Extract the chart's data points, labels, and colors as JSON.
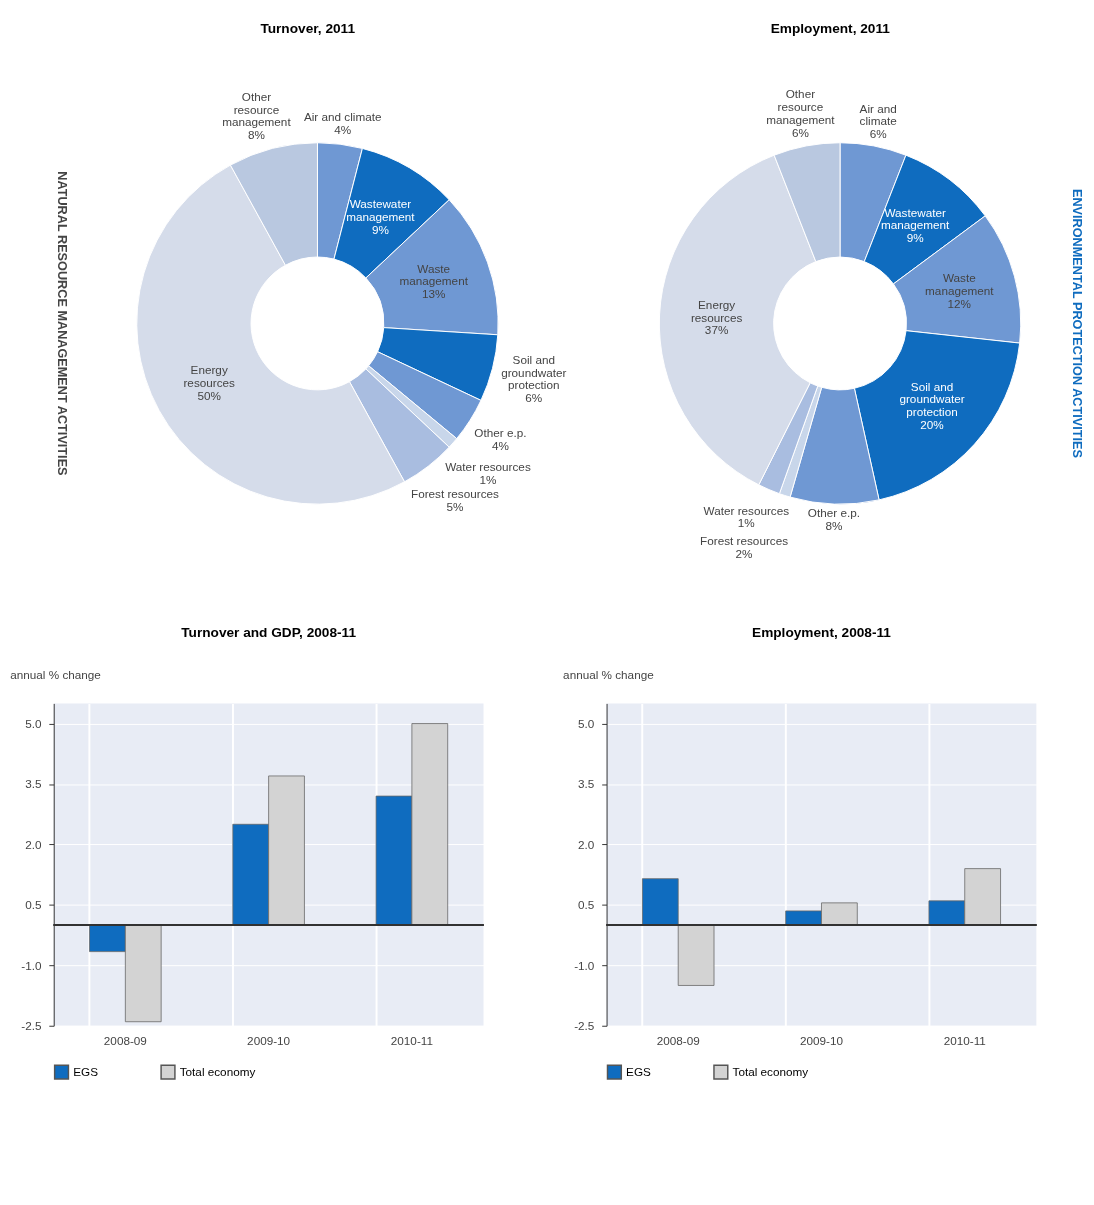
{
  "chart_data": [
    {
      "type": "donut",
      "title": "Turnover, 2011",
      "categories": [
        "Air and climate",
        "Wastewater management",
        "Waste management",
        "Soil and groundwater protection",
        "Other e.p.",
        "Water resources",
        "Forest resources",
        "Energy resources",
        "Other resource management"
      ],
      "values": [
        4,
        9,
        13,
        6,
        4,
        1,
        5,
        50,
        8
      ],
      "value_labels": [
        "4%",
        "9%",
        "13%",
        "6%",
        "4%",
        "1%",
        "5%",
        "50%",
        "8%"
      ],
      "colors": [
        "#6f98d3",
        "#0f6cbf",
        "#6f98d3",
        "#0f6cbf",
        "#6f98d3",
        "#c8d6ea",
        "#a9bde0",
        "#d5dcea",
        "#b9c8e0"
      ],
      "annotations": [
        "NATURAL RESOURCE MANAGEMENT ACTIVITIES"
      ]
    },
    {
      "type": "donut",
      "title": "Employment, 2011",
      "categories": [
        "Air and climate",
        "Wastewater management",
        "Waste management",
        "Soil and groundwater protection",
        "Other e.p.",
        "Water resources",
        "Forest resources",
        "Energy resources",
        "Other resource management"
      ],
      "values": [
        6,
        9,
        12,
        20,
        8,
        1,
        2,
        37,
        6
      ],
      "value_labels": [
        "6%",
        "9%",
        "12%",
        "20%",
        "8%",
        "1%",
        "2%",
        "37%",
        "6%"
      ],
      "colors": [
        "#6f98d3",
        "#0f6cbf",
        "#6f98d3",
        "#0f6cbf",
        "#6f98d3",
        "#c8d6ea",
        "#a9bde0",
        "#d5dcea",
        "#b9c8e0"
      ],
      "annotations": [
        "ENVIRONMENTAL PROTECTION ACTIVITIES"
      ]
    },
    {
      "type": "bar",
      "title": "Turnover and GDP, 2008-11",
      "ylabel": "annual % change",
      "categories": [
        "2008-09",
        "2009-10",
        "2010-11"
      ],
      "series": [
        {
          "name": "EGS",
          "color": "#0f6cbf",
          "values": [
            -0.66,
            2.5,
            3.2
          ]
        },
        {
          "name": "Total economy",
          "color": "#d3d3d3",
          "values": [
            -2.4,
            3.7,
            5.0
          ]
        }
      ],
      "ylim": [
        -2.5,
        5.5
      ],
      "yticks": [
        {
          "value": -2.5,
          "label": "-2.5"
        },
        {
          "value": -1,
          "label": "-1.0"
        },
        {
          "value": 0.5,
          "label": "0.5"
        },
        {
          "value": 2,
          "label": "2.0"
        },
        {
          "value": 3.5,
          "label": "3.5"
        },
        {
          "value": 5,
          "label": "5.0"
        }
      ],
      "grid": true,
      "legend": "bottom"
    },
    {
      "type": "bar",
      "title": "Employment, 2008-11",
      "ylabel": "annual % change",
      "categories": [
        "2008-09",
        "2009-10",
        "2010-11"
      ],
      "series": [
        {
          "name": "EGS",
          "color": "#0f6cbf",
          "values": [
            1.15,
            0.35,
            0.6
          ]
        },
        {
          "name": "Total economy",
          "color": "#d3d3d3",
          "values": [
            -1.5,
            0.55,
            1.4
          ]
        }
      ],
      "ylim": [
        -2.5,
        5.5
      ],
      "yticks": [
        {
          "value": -2.5,
          "label": "-2.5"
        },
        {
          "value": -1,
          "label": "-1.0"
        },
        {
          "value": 0.5,
          "label": "0.5"
        },
        {
          "value": 2,
          "label": "2.0"
        },
        {
          "value": 3.5,
          "label": "3.5"
        },
        {
          "value": 5,
          "label": "5.0"
        }
      ],
      "grid": true,
      "legend": "bottom"
    }
  ]
}
